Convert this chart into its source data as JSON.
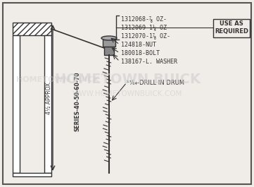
{
  "bg_color": "#f0ede8",
  "border_color": "#555555",
  "title": "",
  "watermark1": "HOMETOWN BUICK",
  "watermark2": "WWW.HOMETOWNBUICK.COM",
  "watermark3": "HOMETOWN BUICK",
  "part_labels": [
    "1312068-⅞ OZ-",
    "1312069-1¼ OZ-",
    "1312070-1⅞ OZ-",
    "124818-NUT",
    "180018-BOLT",
    "138167-L. WASHER"
  ],
  "use_as_required": "USE AS\nREQUIRED",
  "drill_label": "¹⁷⁄₆₄-DRILL IN DRUM",
  "dim_label": "4½ APPROX.",
  "series_label": "SERIES-40-50-60-70"
}
